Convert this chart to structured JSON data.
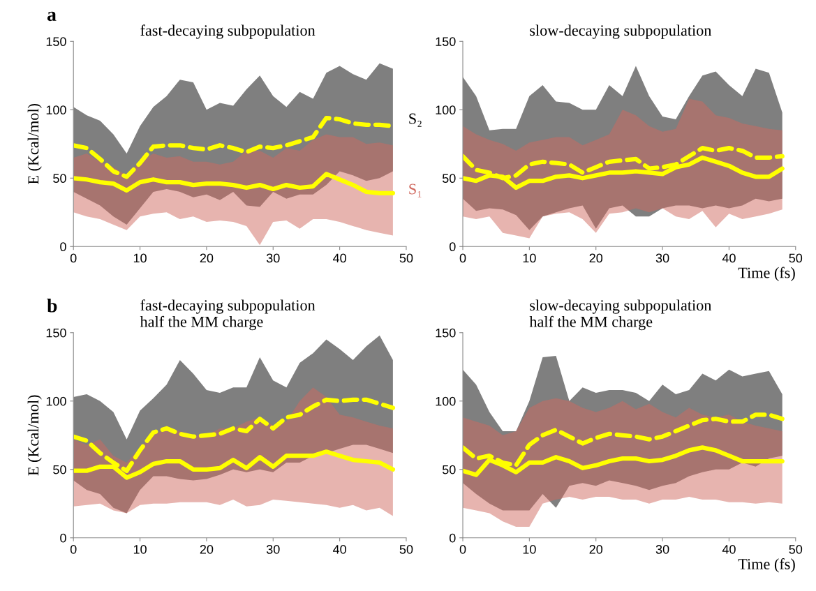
{
  "chart_data": [
    {
      "type": "line",
      "title": "fast-decaying subpopulation",
      "ylabel": "E (Kcal/mol)",
      "annotations": [
        "a"
      ],
      "x": [
        0,
        2,
        4,
        6,
        8,
        10,
        12,
        14,
        16,
        18,
        20,
        22,
        24,
        26,
        28,
        30,
        32,
        34,
        36,
        38,
        40,
        42,
        44,
        46,
        48
      ],
      "xlim": [
        0,
        50
      ],
      "xticks": [
        0,
        10,
        20,
        30,
        40,
        50
      ],
      "ylim": [
        0,
        150
      ],
      "yticks": [
        0,
        50,
        100,
        150
      ],
      "grid": false,
      "legend": false,
      "series": [
        {
          "name": "S₂",
          "type": "line",
          "color": "#000000",
          "values": [
            null,
            null,
            null,
            null,
            null,
            null,
            null,
            null,
            null,
            null,
            null,
            null,
            null,
            null,
            null,
            null,
            null,
            null,
            null,
            null,
            null,
            null,
            null,
            null,
            null
          ],
          "upper": [
            102,
            96,
            92,
            82,
            68,
            88,
            102,
            110,
            122,
            120,
            100,
            105,
            103,
            115,
            125,
            110,
            102,
            113,
            108,
            127,
            132,
            126,
            122,
            134,
            130
          ],
          "lower": [
            40,
            35,
            30,
            22,
            16,
            28,
            40,
            42,
            40,
            36,
            38,
            34,
            40,
            30,
            29,
            40,
            35,
            38,
            38,
            45,
            55,
            52,
            48,
            50,
            55
          ]
        },
        {
          "name": "S₁",
          "type": "line",
          "color": "#d0695f",
          "values": [
            null,
            null,
            null,
            null,
            null,
            null,
            null,
            null,
            null,
            null,
            null,
            null,
            null,
            null,
            null,
            null,
            null,
            null,
            null,
            null,
            null,
            null,
            null,
            null,
            null
          ],
          "upper": [
            65,
            68,
            62,
            58,
            52,
            62,
            68,
            65,
            66,
            62,
            62,
            60,
            62,
            70,
            70,
            65,
            72,
            70,
            78,
            82,
            80,
            80,
            75,
            76,
            74
          ],
          "lower": [
            25,
            22,
            20,
            16,
            12,
            22,
            24,
            25,
            20,
            22,
            18,
            19,
            18,
            15,
            1,
            18,
            19,
            13,
            20,
            20,
            18,
            15,
            12,
            10,
            8
          ]
        },
        {
          "color": "#ffff00",
          "line_style": "dashed",
          "values": [
            74,
            72,
            64,
            55,
            51,
            61,
            73,
            74,
            74,
            72,
            71,
            74,
            72,
            69,
            73,
            72,
            74,
            77,
            80,
            94,
            93,
            90,
            89,
            89,
            88
          ]
        },
        {
          "color": "#ffff00",
          "line_style": "solid",
          "values": [
            50,
            49,
            47,
            46,
            41,
            47,
            49,
            47,
            47,
            45,
            46,
            46,
            45,
            43,
            45,
            42,
            45,
            43,
            44,
            53,
            49,
            45,
            40,
            39,
            39
          ]
        }
      ]
    },
    {
      "type": "line",
      "title": "slow-decaying subpopulation",
      "xlabel": "Time (fs)",
      "x": [
        0,
        2,
        4,
        6,
        8,
        10,
        12,
        14,
        16,
        18,
        20,
        22,
        24,
        26,
        28,
        30,
        32,
        34,
        36,
        38,
        40,
        42,
        44,
        46,
        48
      ],
      "xlim": [
        0,
        50
      ],
      "xticks": [
        0,
        10,
        20,
        30,
        40,
        50
      ],
      "ylim": [
        0,
        150
      ],
      "yticks": [
        0,
        50,
        100,
        150
      ],
      "grid": false,
      "legend": false,
      "series": [
        {
          "type": "line",
          "color": "#000000",
          "values": [
            null,
            null,
            null,
            null,
            null,
            null,
            null,
            null,
            null,
            null,
            null,
            null,
            null,
            null,
            null,
            null,
            null,
            null,
            null,
            null,
            null,
            null,
            null,
            null,
            null
          ],
          "upper": [
            124,
            110,
            85,
            86,
            86,
            110,
            118,
            106,
            105,
            100,
            100,
            118,
            110,
            132,
            110,
            95,
            93,
            110,
            125,
            128,
            118,
            110,
            130,
            127,
            98
          ],
          "lower": [
            35,
            26,
            28,
            27,
            23,
            12,
            22,
            25,
            28,
            30,
            13,
            28,
            30,
            22,
            22,
            28,
            30,
            30,
            28,
            30,
            28,
            30,
            35,
            33,
            35
          ]
        },
        {
          "type": "line",
          "color": "#d0695f",
          "values": [
            null,
            null,
            null,
            null,
            null,
            null,
            null,
            null,
            null,
            null,
            null,
            null,
            null,
            null,
            null,
            null,
            null,
            null,
            null,
            null,
            null,
            null,
            null,
            null,
            null
          ],
          "upper": [
            88,
            82,
            78,
            75,
            70,
            76,
            78,
            80,
            80,
            74,
            78,
            82,
            100,
            96,
            88,
            84,
            86,
            108,
            106,
            96,
            94,
            90,
            88,
            86,
            85
          ],
          "lower": [
            22,
            20,
            22,
            10,
            8,
            6,
            22,
            24,
            25,
            20,
            10,
            24,
            25,
            28,
            25,
            28,
            22,
            20,
            26,
            14,
            24,
            20,
            22,
            24,
            27
          ]
        },
        {
          "color": "#ffff00",
          "line_style": "dashed",
          "values": [
            66,
            56,
            54,
            50,
            52,
            60,
            62,
            61,
            60,
            54,
            58,
            62,
            63,
            64,
            57,
            58,
            60,
            66,
            72,
            70,
            72,
            70,
            65,
            65,
            66
          ]
        },
        {
          "color": "#ffff00",
          "line_style": "solid",
          "values": [
            50,
            48,
            52,
            51,
            43,
            48,
            48,
            51,
            52,
            50,
            52,
            54,
            54,
            55,
            54,
            53,
            58,
            60,
            65,
            62,
            59,
            54,
            51,
            51,
            57
          ]
        }
      ]
    },
    {
      "type": "line",
      "title": "fast-decaying subpopulation",
      "subtitle": "half the MM charge",
      "ylabel": "E (Kcal/mol)",
      "annotations": [
        "b"
      ],
      "x": [
        0,
        2,
        4,
        6,
        8,
        10,
        12,
        14,
        16,
        18,
        20,
        22,
        24,
        26,
        28,
        30,
        32,
        34,
        36,
        38,
        40,
        42,
        44,
        46,
        48
      ],
      "xlim": [
        0,
        50
      ],
      "xticks": [
        0,
        10,
        20,
        30,
        40,
        50
      ],
      "ylim": [
        0,
        150
      ],
      "yticks": [
        0,
        50,
        100,
        150
      ],
      "grid": false,
      "legend": false,
      "series": [
        {
          "type": "line",
          "color": "#000000",
          "values": [
            null,
            null,
            null,
            null,
            null,
            null,
            null,
            null,
            null,
            null,
            null,
            null,
            null,
            null,
            null,
            null,
            null,
            null,
            null,
            null,
            null,
            null,
            null,
            null,
            null
          ],
          "upper": [
            103,
            105,
            100,
            92,
            72,
            93,
            102,
            112,
            130,
            120,
            108,
            106,
            110,
            110,
            132,
            115,
            110,
            128,
            135,
            145,
            138,
            130,
            140,
            148,
            130
          ],
          "lower": [
            42,
            35,
            32,
            22,
            18,
            35,
            45,
            45,
            43,
            42,
            43,
            46,
            50,
            48,
            50,
            48,
            55,
            55,
            60,
            62,
            65,
            68,
            68,
            65,
            62
          ]
        },
        {
          "type": "line",
          "color": "#d0695f",
          "values": [
            null,
            null,
            null,
            null,
            null,
            null,
            null,
            null,
            null,
            null,
            null,
            null,
            null,
            null,
            null,
            null,
            null,
            null,
            null,
            null,
            null,
            null,
            null,
            null,
            null
          ],
          "upper": [
            72,
            68,
            72,
            60,
            55,
            66,
            75,
            80,
            78,
            75,
            75,
            80,
            80,
            85,
            88,
            82,
            85,
            100,
            110,
            103,
            90,
            88,
            85,
            82,
            80
          ],
          "lower": [
            23,
            24,
            25,
            20,
            18,
            24,
            25,
            25,
            26,
            26,
            26,
            24,
            28,
            23,
            24,
            28,
            27,
            26,
            25,
            24,
            22,
            24,
            20,
            22,
            16
          ]
        },
        {
          "color": "#ffff00",
          "line_style": "dashed",
          "values": [
            74,
            71,
            62,
            55,
            49,
            64,
            77,
            80,
            76,
            74,
            75,
            76,
            80,
            78,
            87,
            80,
            88,
            90,
            96,
            101,
            100,
            101,
            101,
            98,
            95
          ]
        },
        {
          "color": "#ffff00",
          "line_style": "solid",
          "values": [
            49,
            49,
            52,
            52,
            44,
            48,
            54,
            56,
            56,
            50,
            50,
            51,
            57,
            51,
            59,
            52,
            60,
            60,
            60,
            63,
            60,
            57,
            56,
            55,
            50
          ]
        }
      ]
    },
    {
      "type": "line",
      "title": "slow-decaying subpopulation",
      "subtitle": "half the MM charge",
      "xlabel": "Time (fs)",
      "x": [
        0,
        2,
        4,
        6,
        8,
        10,
        12,
        14,
        16,
        18,
        20,
        22,
        24,
        26,
        28,
        30,
        32,
        34,
        36,
        38,
        40,
        42,
        44,
        46,
        48
      ],
      "xlim": [
        0,
        50
      ],
      "xticks": [
        0,
        10,
        20,
        30,
        40,
        50
      ],
      "ylim": [
        0,
        150
      ],
      "yticks": [
        0,
        50,
        100,
        150
      ],
      "grid": false,
      "legend": false,
      "series": [
        {
          "type": "line",
          "color": "#000000",
          "values": [
            null,
            null,
            null,
            null,
            null,
            null,
            null,
            null,
            null,
            null,
            null,
            null,
            null,
            null,
            null,
            null,
            null,
            null,
            null,
            null,
            null,
            null,
            null,
            null,
            null
          ],
          "upper": [
            123,
            112,
            92,
            78,
            78,
            100,
            132,
            133,
            100,
            110,
            106,
            108,
            108,
            106,
            100,
            112,
            105,
            108,
            120,
            115,
            123,
            118,
            120,
            122,
            105
          ],
          "lower": [
            40,
            32,
            25,
            20,
            20,
            20,
            32,
            22,
            38,
            40,
            38,
            42,
            40,
            38,
            35,
            38,
            40,
            45,
            48,
            50,
            50,
            55,
            52,
            58,
            60
          ]
        },
        {
          "type": "line",
          "color": "#d0695f",
          "values": [
            null,
            null,
            null,
            null,
            null,
            null,
            null,
            null,
            null,
            null,
            null,
            null,
            null,
            null,
            null,
            null,
            null,
            null,
            null,
            null,
            null,
            null,
            null,
            null,
            null
          ],
          "upper": [
            88,
            85,
            82,
            75,
            78,
            95,
            100,
            102,
            100,
            95,
            92,
            95,
            100,
            94,
            98,
            92,
            88,
            95,
            90,
            88,
            90,
            85,
            82,
            80,
            78
          ],
          "lower": [
            22,
            20,
            18,
            12,
            8,
            8,
            25,
            28,
            30,
            28,
            30,
            30,
            28,
            28,
            25,
            28,
            28,
            30,
            28,
            28,
            26,
            26,
            25,
            26,
            25
          ]
        },
        {
          "color": "#ffff00",
          "line_style": "dashed",
          "values": [
            66,
            58,
            60,
            55,
            53,
            68,
            75,
            79,
            74,
            69,
            73,
            76,
            75,
            74,
            72,
            74,
            78,
            82,
            86,
            87,
            85,
            85,
            90,
            90,
            87
          ]
        },
        {
          "color": "#ffff00",
          "line_style": "solid",
          "values": [
            49,
            46,
            57,
            53,
            48,
            55,
            55,
            59,
            56,
            51,
            53,
            56,
            58,
            58,
            56,
            57,
            60,
            64,
            66,
            64,
            60,
            56,
            56,
            56,
            56
          ]
        }
      ]
    }
  ]
}
